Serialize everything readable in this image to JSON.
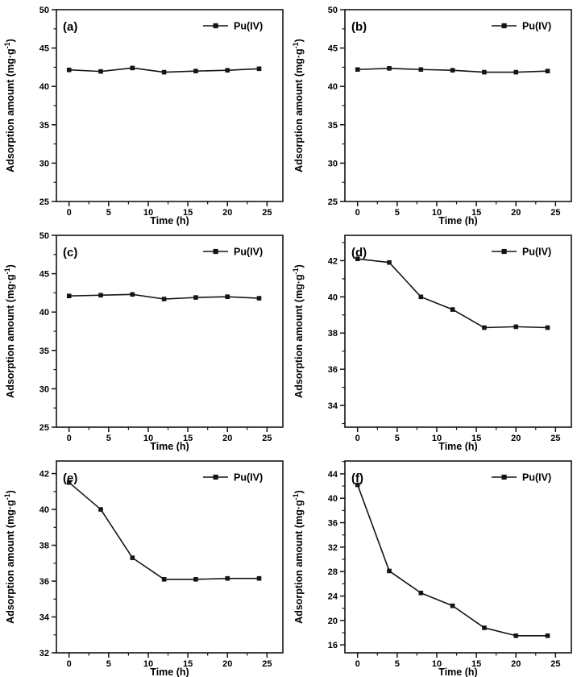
{
  "figure": {
    "background": "#ffffff",
    "line_color": "#141414",
    "text_color": "#000000",
    "marker": "filled-square",
    "xlabel": "Time (h)",
    "ylabel": "Adsorption amount (mg·g⁻¹)",
    "ylabel_main": "Adsorption amount (mg·g",
    "ylabel_sup": "-1",
    "ylabel_end": ")",
    "legend_label": "Pu(IV)",
    "layout": "2 columns × 3 rows of line charts"
  },
  "chart_data": [
    {
      "type": "line",
      "panel": "(a)",
      "xlabel": "Time (h)",
      "ylabel": "Adsorption amount (mg·g⁻¹)",
      "legend": "Pu(IV)",
      "legend_position": "top-right",
      "x": [
        0,
        4,
        8,
        12,
        16,
        20,
        24
      ],
      "values": [
        42.15,
        41.95,
        42.4,
        41.85,
        42.0,
        42.1,
        42.3
      ],
      "xlim": [
        -1.6,
        27
      ],
      "ylim": [
        25,
        50
      ],
      "xticks": [
        0,
        5,
        10,
        15,
        20,
        25
      ],
      "yticks": [
        25,
        30,
        35,
        40,
        45,
        50
      ],
      "grid": false
    },
    {
      "type": "line",
      "panel": "(b)",
      "xlabel": "Time (h)",
      "ylabel": "Adsorption amount (mg·g⁻¹)",
      "legend": "Pu(IV)",
      "legend_position": "top-right",
      "x": [
        0,
        4,
        8,
        12,
        16,
        20,
        24
      ],
      "values": [
        42.2,
        42.35,
        42.2,
        42.1,
        41.85,
        41.85,
        42.0
      ],
      "xlim": [
        -1.6,
        27
      ],
      "ylim": [
        25,
        50
      ],
      "xticks": [
        0,
        5,
        10,
        15,
        20,
        25
      ],
      "yticks": [
        25,
        30,
        35,
        40,
        45,
        50
      ],
      "grid": false
    },
    {
      "type": "line",
      "panel": "(c)",
      "xlabel": "Time (h)",
      "ylabel": "Adsorption amount (mg·g⁻¹)",
      "legend": "Pu(IV)",
      "legend_position": "top-right",
      "x": [
        0,
        4,
        8,
        12,
        16,
        20,
        24
      ],
      "values": [
        42.1,
        42.2,
        42.3,
        41.7,
        41.9,
        42.0,
        41.8
      ],
      "xlim": [
        -1.6,
        27
      ],
      "ylim": [
        25,
        50
      ],
      "xticks": [
        0,
        5,
        10,
        15,
        20,
        25
      ],
      "yticks": [
        25,
        30,
        35,
        40,
        45,
        50
      ],
      "grid": false
    },
    {
      "type": "line",
      "panel": "(d)",
      "xlabel": "Time (h)",
      "ylabel": "Adsorption amount (mg·g⁻¹)",
      "legend": "Pu(IV)",
      "legend_position": "top-right",
      "x": [
        0,
        4,
        8,
        12,
        16,
        20,
        24
      ],
      "values": [
        42.1,
        41.9,
        40.0,
        39.3,
        38.3,
        38.35,
        38.3
      ],
      "xlim": [
        -1.6,
        27
      ],
      "ylim": [
        32.8,
        43.4
      ],
      "xticks": [
        0,
        5,
        10,
        15,
        20,
        25
      ],
      "yticks": [
        34,
        36,
        38,
        40,
        42
      ],
      "grid": false
    },
    {
      "type": "line",
      "panel": "(e)",
      "xlabel": "Time (h)",
      "ylabel": "Adsorption amount (mg·g⁻¹)",
      "legend": "Pu(IV)",
      "legend_position": "top-right",
      "x": [
        0,
        4,
        8,
        12,
        16,
        20,
        24
      ],
      "values": [
        41.5,
        40.0,
        37.3,
        36.1,
        36.1,
        36.15,
        36.15
      ],
      "xlim": [
        -1.6,
        27
      ],
      "ylim": [
        32,
        42.7
      ],
      "xticks": [
        0,
        5,
        10,
        15,
        20,
        25
      ],
      "yticks": [
        32,
        34,
        36,
        38,
        40,
        42
      ],
      "grid": false
    },
    {
      "type": "line",
      "panel": "(f)",
      "xlabel": "Time (h)",
      "ylabel": "Adsorption amount (mg·g⁻¹)",
      "legend": "Pu(IV)",
      "legend_position": "top-right",
      "x": [
        0,
        4,
        8,
        12,
        16,
        20,
        24
      ],
      "values": [
        42.2,
        28.1,
        24.5,
        22.4,
        18.8,
        17.5,
        17.5
      ],
      "xlim": [
        -1.6,
        27
      ],
      "ylim": [
        14.7,
        46.1
      ],
      "xticks": [
        0,
        5,
        10,
        15,
        20,
        25
      ],
      "yticks": [
        16,
        20,
        24,
        28,
        32,
        36,
        40,
        44
      ],
      "grid": false
    }
  ]
}
